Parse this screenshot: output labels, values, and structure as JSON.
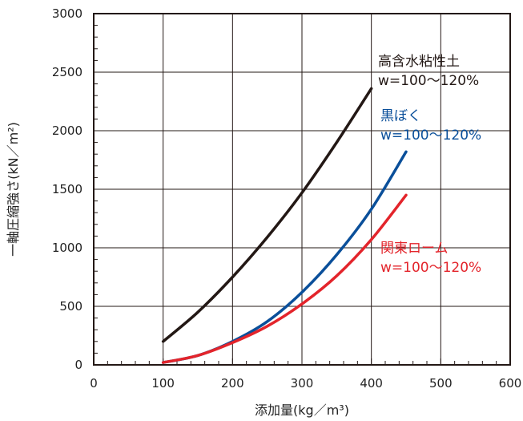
{
  "chart_data": {
    "type": "line",
    "title": "",
    "xlabel": "添加量(kg／m³)",
    "ylabel": "一軸圧縮強さ(kN／m²)",
    "xlim": [
      0,
      600
    ],
    "ylim": [
      0,
      3000
    ],
    "x_ticks": [
      "0",
      "100",
      "200",
      "300",
      "400",
      "500",
      "600"
    ],
    "y_ticks": [
      "0",
      "500",
      "1000",
      "1500",
      "2000",
      "2500",
      "3000"
    ],
    "grid": true,
    "series": [
      {
        "name": "高含水粘性土",
        "note": "w=100～120%",
        "color": "#231815",
        "x": [
          100,
          150,
          200,
          250,
          300,
          350,
          400
        ],
        "y": [
          200,
          450,
          750,
          1090,
          1470,
          1900,
          2360
        ]
      },
      {
        "name": "黒ぼく",
        "note": "w=100～120%",
        "color": "#0a4f9a",
        "x": [
          100,
          150,
          200,
          250,
          300,
          350,
          400,
          450
        ],
        "y": [
          20,
          80,
          200,
          370,
          620,
          940,
          1330,
          1820
        ]
      },
      {
        "name": "関東ローム",
        "note": "w=100～120%",
        "color": "#e3242b",
        "x": [
          100,
          150,
          200,
          250,
          300,
          350,
          400,
          450
        ],
        "y": [
          20,
          80,
          190,
          330,
          520,
          760,
          1070,
          1450
        ]
      }
    ]
  }
}
